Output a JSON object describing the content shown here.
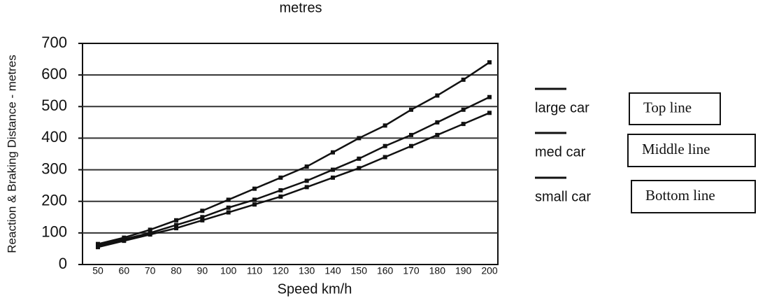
{
  "chart_data": {
    "type": "line",
    "title": "metres",
    "x_label": "Speed km/h",
    "y_label": "Reaction & Braking Distance - metres",
    "categories": [
      "50",
      "60",
      "70",
      "80",
      "90",
      "100",
      "110",
      "120",
      "130",
      "140",
      "150",
      "160",
      "170",
      "180",
      "190",
      "200"
    ],
    "series": [
      {
        "name": "large car",
        "color": "#111111",
        "values": [
          65,
          85,
          110,
          140,
          170,
          205,
          240,
          275,
          310,
          355,
          400,
          440,
          490,
          535,
          585,
          640
        ]
      },
      {
        "name": "med car",
        "color": "#111111",
        "values": [
          60,
          80,
          100,
          125,
          150,
          180,
          205,
          235,
          265,
          300,
          335,
          375,
          410,
          450,
          490,
          530
        ]
      },
      {
        "name": "small car",
        "color": "#111111",
        "values": [
          55,
          75,
          95,
          115,
          140,
          165,
          190,
          215,
          245,
          275,
          305,
          340,
          375,
          410,
          445,
          480
        ]
      }
    ],
    "annotations": [
      "Top line",
      "Middle line",
      "Bottom line"
    ],
    "ylim": [
      0,
      700
    ],
    "yticks": [
      0,
      100,
      200,
      300,
      400,
      500,
      600,
      700
    ],
    "grid": true
  }
}
